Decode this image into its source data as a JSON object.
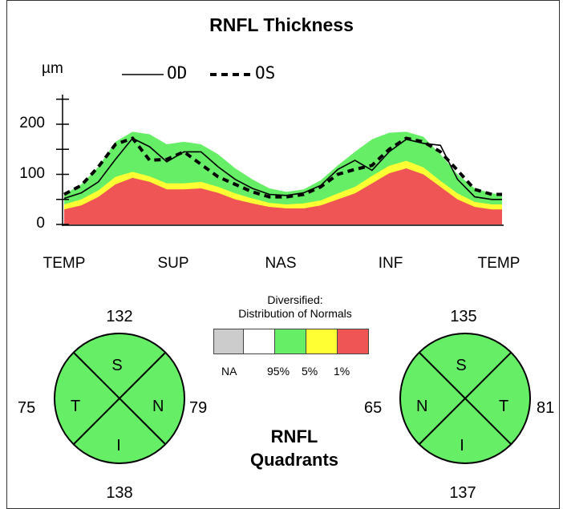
{
  "chart_data": {
    "type": "area",
    "title": "RNFL Thickness",
    "ylabel": "µm",
    "ylim": [
      0,
      250
    ],
    "yticks": [
      0,
      100,
      200
    ],
    "xticks": [
      "TEMP",
      "SUP",
      "NAS",
      "INF",
      "TEMP"
    ],
    "x": [
      0,
      10,
      20,
      30,
      40,
      50,
      60,
      70,
      80,
      90,
      100,
      110,
      120,
      130,
      140,
      150,
      160,
      170,
      180,
      190,
      200,
      210,
      220,
      230,
      240,
      250,
      256
    ],
    "bands": {
      "red_1pct": [
        30,
        38,
        55,
        80,
        93,
        85,
        70,
        70,
        72,
        63,
        50,
        42,
        35,
        32,
        32,
        38,
        50,
        62,
        82,
        102,
        112,
        100,
        75,
        50,
        35,
        30,
        30
      ],
      "yellow_5pct": [
        40,
        50,
        68,
        95,
        105,
        96,
        82,
        82,
        85,
        75,
        62,
        52,
        43,
        40,
        42,
        48,
        62,
        75,
        97,
        117,
        127,
        114,
        87,
        62,
        45,
        40,
        40
      ],
      "green_95pct": [
        60,
        80,
        115,
        165,
        185,
        180,
        160,
        165,
        160,
        140,
        112,
        90,
        72,
        65,
        70,
        88,
        118,
        145,
        170,
        183,
        185,
        175,
        140,
        100,
        72,
        62,
        60
      ]
    },
    "series": [
      {
        "name": "OD",
        "style": "solid",
        "values": [
          52,
          63,
          85,
          130,
          172,
          155,
          125,
          145,
          145,
          115,
          90,
          72,
          60,
          58,
          63,
          78,
          110,
          128,
          108,
          145,
          170,
          162,
          158,
          90,
          55,
          50,
          50
        ]
      },
      {
        "name": "OS",
        "style": "dashed",
        "values": [
          60,
          78,
          115,
          160,
          172,
          128,
          130,
          145,
          120,
          95,
          80,
          65,
          55,
          55,
          60,
          75,
          100,
          110,
          118,
          150,
          172,
          165,
          145,
          108,
          70,
          60,
          60
        ]
      }
    ],
    "legend": {
      "od": "OD",
      "os": "OS"
    }
  },
  "distribution": {
    "title_line1": "Diversified:",
    "title_line2": "Distribution of Normals",
    "swatches": [
      {
        "name": "na",
        "color": "#cccccc"
      },
      {
        "name": "normal",
        "color": "#ffffff"
      },
      {
        "name": "green",
        "color": "#66ee66"
      },
      {
        "name": "yellow",
        "color": "#ffff33"
      },
      {
        "name": "red",
        "color": "#f05555"
      }
    ],
    "labels": {
      "na": "NA",
      "p95": "95%",
      "p5": "5%",
      "p1": "1%"
    }
  },
  "quadrants": {
    "title_line1": "RNFL",
    "title_line2": "Quadrants",
    "fill_color": "#66ee66",
    "od": {
      "top": "132",
      "bottom": "138",
      "left": "75",
      "right": "79",
      "S": "S",
      "I": "I",
      "L": "T",
      "R": "N"
    },
    "os": {
      "top": "135",
      "bottom": "137",
      "left": "65",
      "right": "81",
      "S": "S",
      "I": "I",
      "L": "N",
      "R": "T"
    }
  },
  "colors": {
    "red": "#f05555",
    "yellow": "#ffff33",
    "green": "#66ee66"
  }
}
